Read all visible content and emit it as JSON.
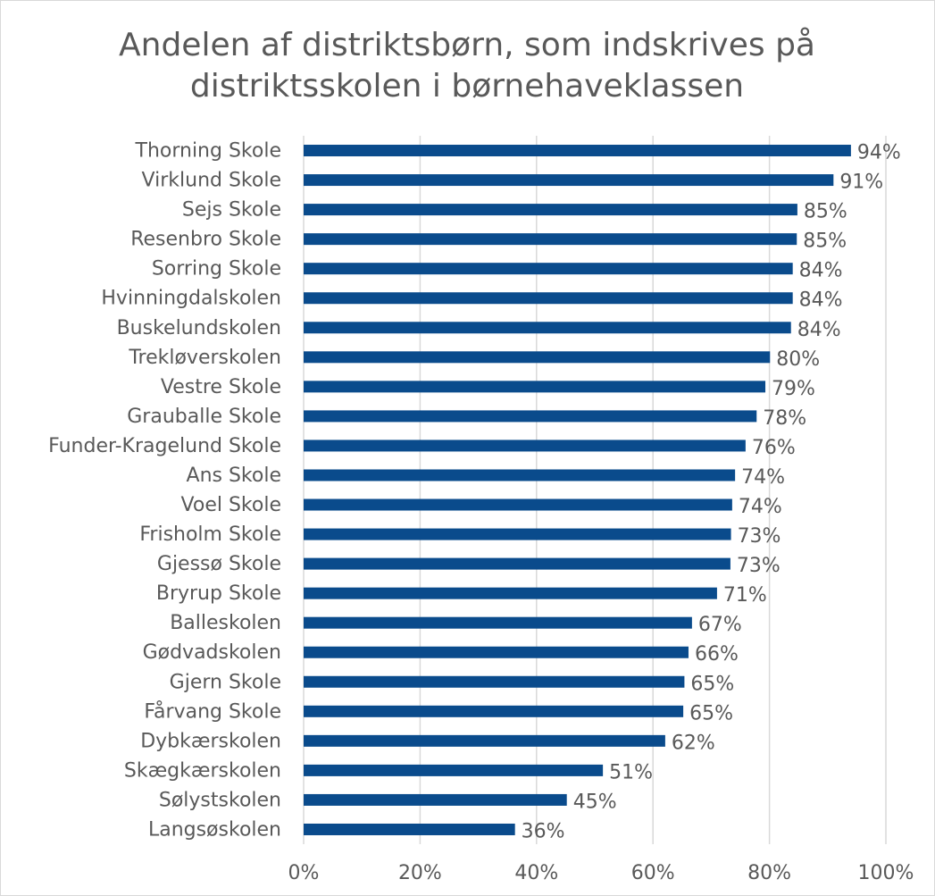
{
  "chart_data": {
    "type": "barh",
    "title": "Andelen af distriktsbørn, som indskrives på distriktsskolen i børnehaveklassen",
    "categories": [
      "Thorning Skole",
      "Virklund Skole",
      "Sejs Skole",
      "Resenbro Skole",
      "Sorring Skole",
      "Hvinningdalskolen",
      "Buskelundskolen",
      "Trekløverskolen",
      "Vestre Skole",
      "Grauballe Skole",
      "Funder-Kragelund Skole",
      "Ans Skole",
      "Voel Skole",
      "Frisholm Skole",
      "Gjessø Skole",
      "Bryrup Skole",
      "Balleskolen",
      "Gødvadskolen",
      "Gjern Skole",
      "Fårvang Skole",
      "Dybkærskolen",
      "Skægkærskolen",
      "Sølystskolen",
      "Langsøskolen"
    ],
    "values": [
      94.0,
      91.0,
      84.8,
      84.7,
      84.0,
      84.0,
      83.7,
      80.1,
      79.3,
      77.8,
      75.9,
      74.1,
      73.6,
      73.4,
      73.3,
      71.0,
      66.7,
      66.1,
      65.4,
      65.2,
      62.1,
      51.4,
      45.2,
      36.3
    ],
    "value_labels": [
      "94%",
      "91%",
      "85%",
      "85%",
      "84%",
      "84%",
      "84%",
      "80%",
      "79%",
      "78%",
      "76%",
      "74%",
      "74%",
      "73%",
      "73%",
      "71%",
      "67%",
      "66%",
      "65%",
      "65%",
      "62%",
      "51%",
      "45%",
      "36%"
    ],
    "color": "#0a4b8c",
    "xlim": [
      0,
      100
    ],
    "xticks": [
      {
        "value": 0,
        "label": "0%"
      },
      {
        "value": 20,
        "label": "20%"
      },
      {
        "value": 40,
        "label": "40%"
      },
      {
        "value": 60,
        "label": "60%"
      },
      {
        "value": 80,
        "label": "80%"
      },
      {
        "value": 100,
        "label": "100%"
      }
    ],
    "grid": true
  }
}
